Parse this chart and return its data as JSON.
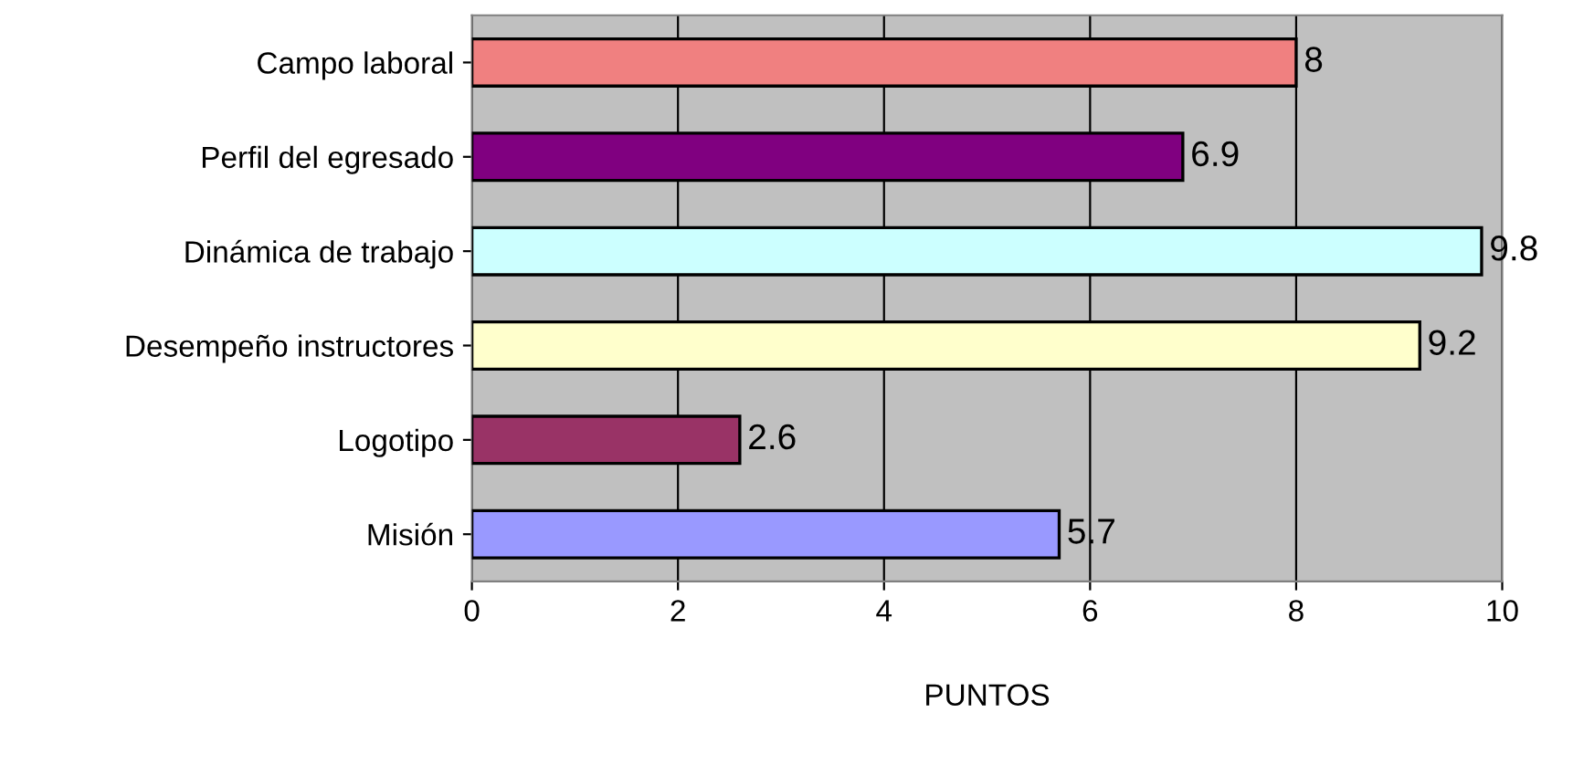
{
  "chart_data": {
    "type": "bar",
    "orientation": "horizontal",
    "xlabel": "PUNTOS",
    "categories": [
      "Campo laboral",
      "Perfil del egresado",
      "Dinámica de trabajo",
      "Desempeño instructores",
      "Logotipo",
      "Misión"
    ],
    "values": [
      8,
      6.9,
      9.8,
      9.2,
      2.6,
      5.7
    ],
    "colors": [
      "#f08080",
      "#800080",
      "#ccffff",
      "#ffffcc",
      "#993366",
      "#9999ff"
    ],
    "xlim": [
      0,
      10
    ],
    "xticks": [
      0,
      2,
      4,
      6,
      8,
      10
    ],
    "grid": "x",
    "data_labels": true,
    "legend": false
  }
}
